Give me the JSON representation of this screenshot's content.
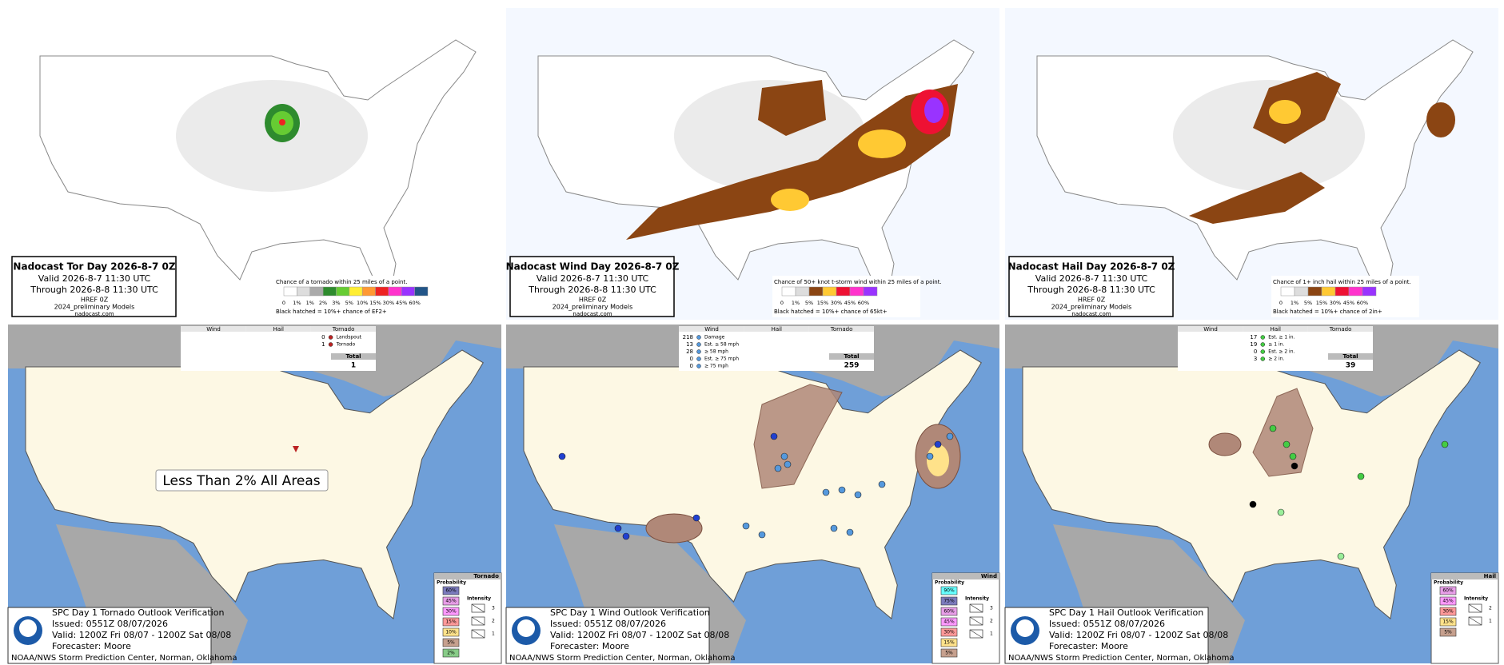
{
  "forecast_panels": [
    {
      "title": "Nadocast Tor Day 2026-8-7 0Z",
      "valid": "Valid 2026-8-7 11:30 UTC",
      "through": "Through 2026-8-8 11:30 UTC",
      "model": "HREF 0Z",
      "models": "2024_preliminary Models",
      "site": "nadocast.com",
      "legend_title": "Chance of a tornado within 25 miles of a point.",
      "legend_labels": [
        "0",
        "1%",
        "1%",
        "2%",
        "3%",
        "5%",
        "10%",
        "15%",
        "30%",
        "45%",
        "60%"
      ],
      "legend_colors": [
        "#ffffff",
        "#dddddd",
        "#aaaaaa",
        "#2e8b2e",
        "#66cc33",
        "#ffee33",
        "#ff9933",
        "#ee2222",
        "#ff33cc",
        "#9933ff",
        "#225588"
      ],
      "legend_note": "Black hatched = 10%+ chance of EF2+"
    },
    {
      "title": "Nadocast Wind Day 2026-8-7 0Z",
      "valid": "Valid 2026-8-7 11:30 UTC",
      "through": "Through 2026-8-8 11:30 UTC",
      "model": "HREF 0Z",
      "models": "2024_preliminary Models",
      "site": "nadocast.com",
      "legend_title": "Chance of 50+ knot t-storm wind within 25 miles of a point.",
      "legend_labels": [
        "0",
        "1%",
        "5%",
        "15%",
        "30%",
        "45%",
        "60%"
      ],
      "legend_colors": [
        "#ffffff",
        "#dddddd",
        "#8b4513",
        "#ffc933",
        "#ee1133",
        "#ff33cc",
        "#9933ff"
      ],
      "legend_note": "Black hatched = 10%+ chance of 65kt+"
    },
    {
      "title": "Nadocast Hail Day 2026-8-7 0Z",
      "valid": "Valid 2026-8-7 11:30 UTC",
      "through": "Through 2026-8-8 11:30 UTC",
      "model": "HREF 0Z",
      "models": "2024_preliminary Models",
      "site": "nadocast.com",
      "legend_title": "Chance of 1+ inch hail within 25 miles of a point.",
      "legend_labels": [
        "0",
        "1%",
        "5%",
        "15%",
        "30%",
        "45%",
        "60%"
      ],
      "legend_colors": [
        "#ffffff",
        "#dddddd",
        "#8b4513",
        "#ffc933",
        "#ee1133",
        "#ff33cc",
        "#9933ff"
      ],
      "legend_note": "Black hatched = 10%+ chance of 2in+"
    }
  ],
  "verification_panels": [
    {
      "report_headers": [
        "Wind",
        "Hail",
        "Tornado"
      ],
      "report_column": 2,
      "reports": [
        {
          "count": 0,
          "label": "Landspout"
        },
        {
          "count": 1,
          "label": "Tornado"
        }
      ],
      "total_label": "Total",
      "total": 1,
      "annotation": "Less Than 2% All Areas",
      "info": {
        "title": "SPC Day 1 Tornado Outlook Verification",
        "issued": "Issued: 0551Z 08/07/2026",
        "valid": "Valid: 1200Z Fri 08/07 - 1200Z Sat 08/08",
        "forecaster": "Forecaster: Moore",
        "credit": "NOAA/NWS Storm Prediction Center, Norman, Oklahoma"
      },
      "legend": {
        "title": "Tornado",
        "probability_label": "Probability",
        "probabilities": [
          "60%",
          "45%",
          "30%",
          "15%",
          "10%",
          "5%",
          "2%"
        ],
        "colors": [
          "#7b7bbd",
          "#e89ee8",
          "#ff99ff",
          "#ff9999",
          "#ffe28a",
          "#c6a08e",
          "#88cc88"
        ],
        "intensity_label": "Intensity",
        "intensities": [
          3,
          2,
          1
        ]
      }
    },
    {
      "report_headers": [
        "Wind",
        "Hail",
        "Tornado"
      ],
      "report_column": 0,
      "reports": [
        {
          "count": 218,
          "label": "Damage"
        },
        {
          "count": 13,
          "label": "Est. ≥ 58 mph"
        },
        {
          "count": 28,
          "label": "≥ 58 mph"
        },
        {
          "count": 0,
          "label": "Est. ≥ 75 mph"
        },
        {
          "count": 0,
          "label": "≥ 75 mph"
        }
      ],
      "total_label": "Total",
      "total": 259,
      "info": {
        "title": "SPC Day 1 Wind Outlook Verification",
        "issued": "Issued: 0551Z 08/07/2026",
        "valid": "Valid: 1200Z Fri 08/07 - 1200Z Sat 08/08",
        "forecaster": "Forecaster: Moore",
        "credit": "NOAA/NWS Storm Prediction Center, Norman, Oklahoma"
      },
      "legend": {
        "title": "Wind",
        "probability_label": "Probability",
        "probabilities": [
          "90%",
          "75%",
          "60%",
          "45%",
          "30%",
          "15%",
          "5%"
        ],
        "colors": [
          "#66ffff",
          "#7b7bbd",
          "#e89ee8",
          "#ff99ff",
          "#ff9999",
          "#ffe28a",
          "#c6a08e"
        ],
        "intensity_label": "Intensity",
        "intensities": [
          3,
          2,
          1
        ]
      }
    },
    {
      "report_headers": [
        "Wind",
        "Hail",
        "Tornado"
      ],
      "report_column": 1,
      "reports": [
        {
          "count": 17,
          "label": "Est. ≥ 1 in."
        },
        {
          "count": 19,
          "label": "≥ 1 in."
        },
        {
          "count": 0,
          "label": "Est. ≥ 2 in."
        },
        {
          "count": 3,
          "label": "≥ 2 in."
        }
      ],
      "total_label": "Total",
      "total": 39,
      "info": {
        "title": "SPC Day 1 Hail Outlook Verification",
        "issued": "Issued: 0551Z 08/07/2026",
        "valid": "Valid: 1200Z Fri 08/07 - 1200Z Sat 08/08",
        "forecaster": "Forecaster: Moore",
        "credit": "NOAA/NWS Storm Prediction Center, Norman, Oklahoma"
      },
      "legend": {
        "title": "Hail",
        "probability_label": "Probability",
        "probabilities": [
          "60%",
          "45%",
          "30%",
          "15%",
          "5%"
        ],
        "colors": [
          "#e89ee8",
          "#ff99ff",
          "#ff9999",
          "#ffe28a",
          "#c6a08e"
        ],
        "intensity_label": "Intensity",
        "intensities": [
          2,
          1
        ]
      }
    }
  ]
}
